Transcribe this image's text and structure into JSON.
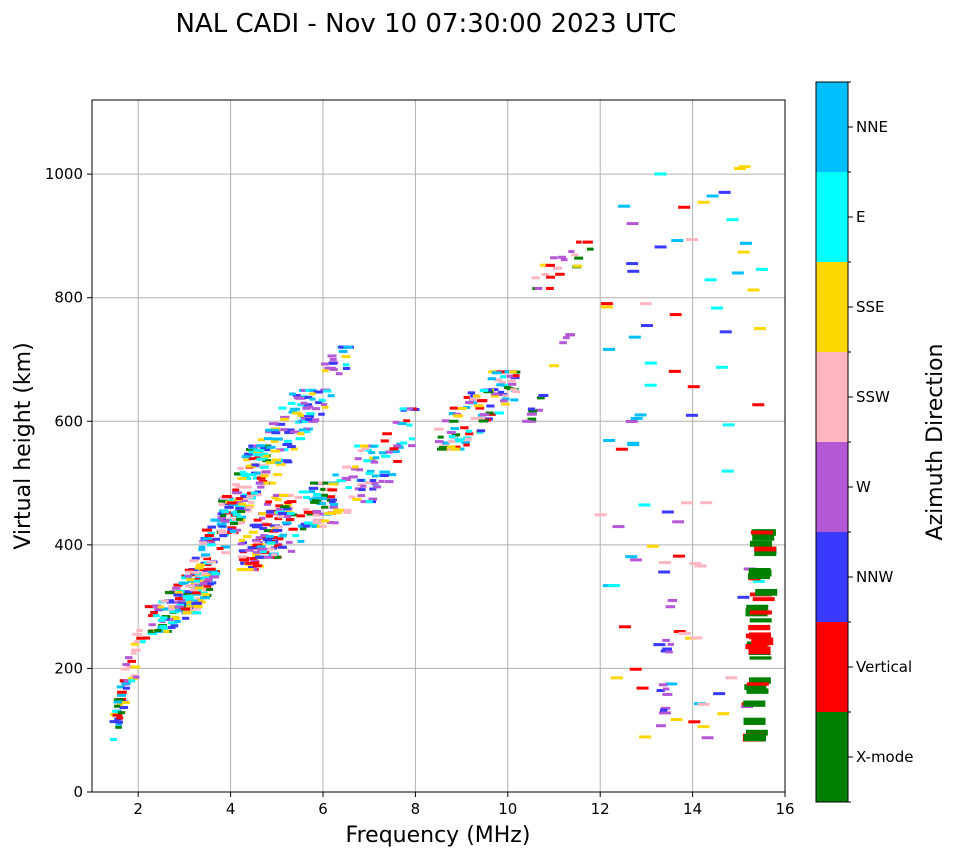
{
  "chart_data": {
    "type": "scatter",
    "title": "NAL CADI - Nov 10 07:30:00 2023 UTC",
    "xlabel": "Frequency (MHz)",
    "ylabel": "Virtual height (km)",
    "xlim": [
      1.0,
      16.0
    ],
    "ylim": [
      0,
      1120
    ],
    "xticks": [
      2,
      4,
      6,
      8,
      10,
      12,
      14,
      16
    ],
    "yticks": [
      0,
      200,
      400,
      600,
      800,
      1000
    ],
    "grid": true,
    "colorbar": {
      "label": "Azimuth Direction",
      "categories": [
        {
          "name": "X-mode",
          "color": "#008000"
        },
        {
          "name": "Vertical",
          "color": "#ff0000"
        },
        {
          "name": "NNW",
          "color": "#3a3aff"
        },
        {
          "name": "W",
          "color": "#b558d6"
        },
        {
          "name": "SSW",
          "color": "#ffb6c1"
        },
        {
          "name": "SSE",
          "color": "#ffd700"
        },
        {
          "name": "E",
          "color": "#00ffff"
        },
        {
          "name": "NNE",
          "color": "#00bfff"
        }
      ]
    },
    "clusters": [
      {
        "x": [
          1.45,
          1.75
        ],
        "y": [
          85,
          180
        ],
        "n": 30,
        "cats": [
          0,
          1,
          2,
          3,
          5,
          6,
          7
        ]
      },
      {
        "x": [
          1.7,
          2.4
        ],
        "y": [
          180,
          300
        ],
        "n": 25,
        "cats": [
          3,
          4,
          5,
          6,
          1
        ]
      },
      {
        "x": [
          2.3,
          3.6
        ],
        "y": [
          260,
          360
        ],
        "n": 140,
        "cats": [
          0,
          1,
          2,
          3,
          4,
          5,
          6,
          7
        ]
      },
      {
        "x": [
          3.0,
          3.9
        ],
        "y": [
          290,
          440
        ],
        "n": 110,
        "cats": [
          1,
          2,
          3,
          4,
          5,
          6,
          7
        ]
      },
      {
        "x": [
          3.8,
          4.8
        ],
        "y": [
          420,
          560
        ],
        "n": 160,
        "cats": [
          0,
          1,
          2,
          3,
          4,
          5,
          6,
          7
        ]
      },
      {
        "x": [
          4.2,
          5.3
        ],
        "y": [
          360,
          480
        ],
        "n": 90,
        "cats": [
          1,
          2,
          3,
          4,
          5
        ]
      },
      {
        "x": [
          4.6,
          6.3
        ],
        "y": [
          380,
          500
        ],
        "n": 100,
        "cats": [
          0,
          1,
          2,
          3,
          4,
          6,
          7
        ]
      },
      {
        "x": [
          4.5,
          5.8
        ],
        "y": [
          500,
          650
        ],
        "n": 80,
        "cats": [
          2,
          3,
          5,
          6,
          7
        ]
      },
      {
        "x": [
          5.5,
          6.6
        ],
        "y": [
          600,
          720
        ],
        "n": 45,
        "cats": [
          2,
          3,
          5,
          6,
          7
        ]
      },
      {
        "x": [
          5.8,
          7.2
        ],
        "y": [
          430,
          560
        ],
        "n": 50,
        "cats": [
          3,
          4,
          5,
          6,
          7
        ]
      },
      {
        "x": [
          6.8,
          8.0
        ],
        "y": [
          470,
          620
        ],
        "n": 50,
        "cats": [
          1,
          2,
          3,
          6,
          7
        ]
      },
      {
        "x": [
          8.5,
          10.2
        ],
        "y": [
          555,
          680
        ],
        "n": 120,
        "cats": [
          0,
          1,
          2,
          3,
          4,
          5,
          6,
          7
        ]
      },
      {
        "x": [
          10.4,
          10.9
        ],
        "y": [
          600,
          650
        ],
        "n": 10,
        "cats": [
          0,
          2,
          3
        ]
      },
      {
        "x": [
          10.6,
          11.8
        ],
        "y": [
          815,
          890
        ],
        "n": 22,
        "cats": [
          0,
          1,
          3,
          4,
          5
        ]
      },
      {
        "x": [
          11.0,
          11.4
        ],
        "y": [
          690,
          740
        ],
        "n": 5,
        "cats": [
          3,
          5
        ]
      },
      {
        "x": [
          12.0,
          15.5
        ],
        "y": [
          85,
          1015
        ],
        "n": 90,
        "cats": [
          1,
          2,
          3,
          4,
          5,
          6,
          7
        ],
        "sparse": true
      },
      {
        "x": [
          13.3,
          13.6
        ],
        "y": [
          100,
          310
        ],
        "n": 14,
        "cats": [
          3,
          2
        ]
      },
      {
        "x": [
          15.3,
          15.6
        ],
        "y": [
          88,
          420
        ],
        "n": 40,
        "cats": [
          0,
          1,
          0
        ],
        "wide": true
      }
    ]
  }
}
